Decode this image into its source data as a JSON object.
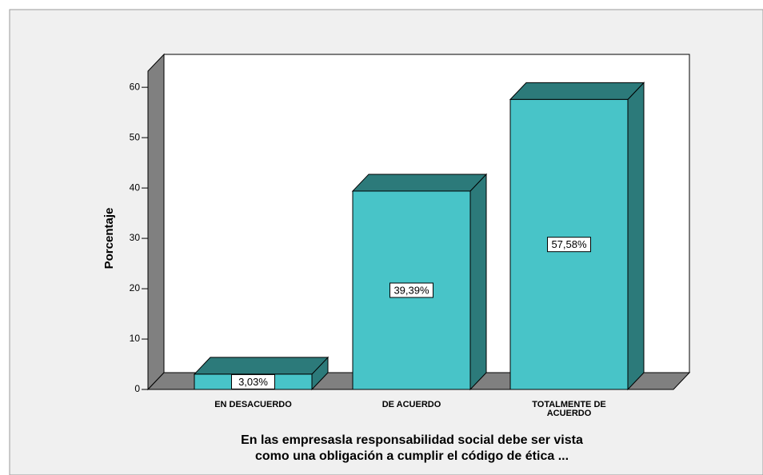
{
  "chart_data": {
    "type": "bar3d",
    "categories": [
      "EN DESACUERDO",
      "DE ACUERDO",
      "TOTALMENTE DE ACUERDO"
    ],
    "values": [
      3.03,
      39.39,
      57.58
    ],
    "value_labels": [
      "3,03%",
      "39,39%",
      "57,58%"
    ],
    "color": "#48c4c8",
    "side_color": "#2c7a7a",
    "ylabel": "Porcentaje",
    "xlabel": [
      "En las empresasla responsabilidad social debe ser vista",
      "como una obligación a cumplir el código de ética ..."
    ],
    "ylim": [
      0,
      63.2
    ],
    "yticks": [
      0,
      10,
      20,
      30,
      40,
      50,
      60
    ]
  }
}
